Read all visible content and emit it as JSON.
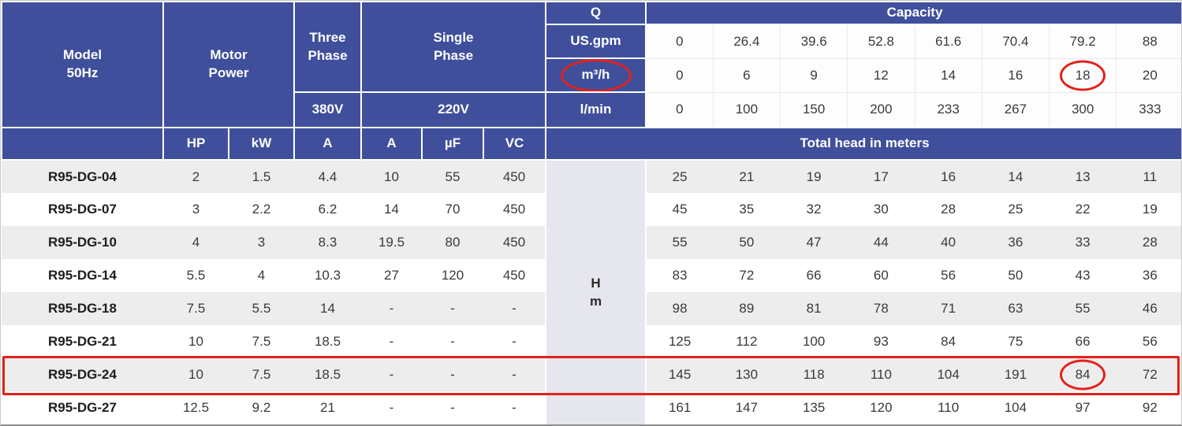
{
  "table": {
    "header": {
      "model_label": "Model",
      "model_freq": "50Hz",
      "motor_power_label": "Motor Power",
      "three_phase_label": "Three Phase",
      "single_phase_label": "Single Phase",
      "three_phase_voltage": "380V",
      "single_phase_voltage": "220V",
      "q_label": "Q",
      "capacity_label": "Capacity",
      "unit_rows": [
        {
          "label": "US.gpm",
          "values": [
            "0",
            "26.4",
            "39.6",
            "52.8",
            "61.6",
            "70.4",
            "79.2",
            "88"
          ]
        },
        {
          "label": "m³/h",
          "values": [
            "0",
            "6",
            "9",
            "12",
            "14",
            "16",
            "18",
            "20"
          ]
        },
        {
          "label": "l/min",
          "values": [
            "0",
            "100",
            "150",
            "200",
            "233",
            "267",
            "300",
            "333"
          ]
        }
      ],
      "electrical_units": [
        "HP",
        "kW",
        "A",
        "A",
        "µF",
        "VC"
      ],
      "total_head_label": "Total head in meters"
    },
    "head_symbol": "H",
    "head_unit": "m",
    "rows": [
      {
        "model": "R95-DG-04",
        "specs": [
          "2",
          "1.5",
          "4.4",
          "10",
          "55",
          "450"
        ],
        "heads": [
          "25",
          "21",
          "19",
          "17",
          "16",
          "14",
          "13",
          "11"
        ]
      },
      {
        "model": "R95-DG-07",
        "specs": [
          "3",
          "2.2",
          "6.2",
          "14",
          "70",
          "450"
        ],
        "heads": [
          "45",
          "35",
          "32",
          "30",
          "28",
          "25",
          "22",
          "19"
        ]
      },
      {
        "model": "R95-DG-10",
        "specs": [
          "4",
          "3",
          "8.3",
          "19.5",
          "80",
          "450"
        ],
        "heads": [
          "55",
          "50",
          "47",
          "44",
          "40",
          "36",
          "33",
          "28"
        ]
      },
      {
        "model": "R95-DG-14",
        "specs": [
          "5.5",
          "4",
          "10.3",
          "27",
          "120",
          "450"
        ],
        "heads": [
          "83",
          "72",
          "66",
          "60",
          "56",
          "50",
          "43",
          "36"
        ]
      },
      {
        "model": "R95-DG-18",
        "specs": [
          "7.5",
          "5.5",
          "14",
          "-",
          "-",
          "-"
        ],
        "heads": [
          "98",
          "89",
          "81",
          "78",
          "71",
          "63",
          "55",
          "46"
        ]
      },
      {
        "model": "R95-DG-21",
        "specs": [
          "10",
          "7.5",
          "18.5",
          "-",
          "-",
          "-"
        ],
        "heads": [
          "125",
          "112",
          "100",
          "93",
          "84",
          "75",
          "66",
          "56"
        ]
      },
      {
        "model": "R95-DG-24",
        "specs": [
          "10",
          "7.5",
          "18.5",
          "-",
          "-",
          "-"
        ],
        "heads": [
          "145",
          "130",
          "118",
          "110",
          "104",
          "191",
          "84",
          "72"
        ]
      },
      {
        "model": "R95-DG-27",
        "specs": [
          "12.5",
          "9.2",
          "21",
          "-",
          "-",
          "-"
        ],
        "heads": [
          "161",
          "147",
          "135",
          "120",
          "110",
          "104",
          "97",
          "92"
        ]
      }
    ]
  },
  "colors": {
    "header_navy": "#404f9b",
    "row_alt_gray": "#ededed",
    "hm_column_bg": "#e6e6ee",
    "annotation_red": "#e3211a"
  },
  "annotations": {
    "circled_unit_label_index": 1,
    "circled_unit_value": {
      "row": 1,
      "col": 6
    },
    "circled_head_value": {
      "row": 6,
      "col": 6
    },
    "boxed_row_index": 6
  }
}
